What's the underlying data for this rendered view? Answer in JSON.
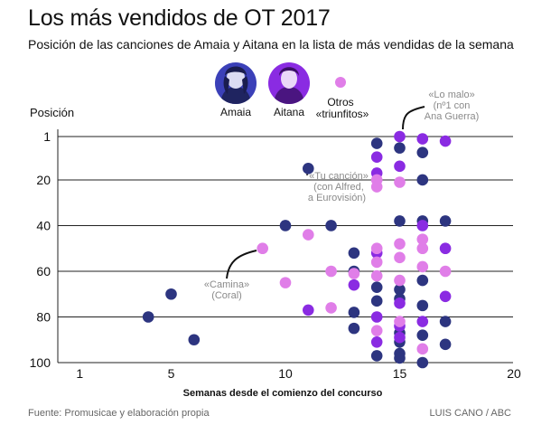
{
  "title": "Los más vendidos de OT 2017",
  "subtitle": "Posición de las canciones de Amaia y Aitana en la lista de más vendidas de la semana",
  "colors": {
    "amaia": "#2d3580",
    "aitana": "#8a2be2",
    "otros": "#e07ee8",
    "amaia_bg": "#3b40b8"
  },
  "legend": [
    {
      "key": "amaia",
      "label": "Amaia",
      "icon": "amaia-portrait"
    },
    {
      "key": "aitana",
      "label": "Aitana",
      "icon": "aitana-portrait"
    },
    {
      "key": "otros",
      "label_line1": "Otros",
      "label_line2": "«triunfitos»",
      "icon": "dot"
    }
  ],
  "annotations": {
    "lo_malo": [
      "«Lo malo»",
      "(nº1 con",
      "Ana Guerra)"
    ],
    "tu_cancion": [
      "«Tu canción»",
      "(con Alfred,",
      "a Eurovisión)"
    ],
    "camina": [
      "«Camina»",
      "(Coral)"
    ]
  },
  "footer": {
    "source": "Fuente: Promusicae y elaboración propia",
    "credit": "LUIS CANO / ABC"
  },
  "chart_data": {
    "type": "scatter",
    "title": "Los más vendidos de OT 2017",
    "ylabel": "Posición",
    "xlabel": "Semanas desde el comienzo del concurso",
    "xlim": [
      0,
      20
    ],
    "ylim": [
      1,
      100
    ],
    "y_inverted": true,
    "x_ticks": [
      1,
      5,
      10,
      15,
      20
    ],
    "y_ticks": [
      1,
      20,
      40,
      60,
      80,
      100
    ],
    "series": [
      {
        "name": "Amaia",
        "points": [
          [
            4,
            80
          ],
          [
            5,
            70
          ],
          [
            6,
            90
          ],
          [
            10,
            40
          ],
          [
            11,
            15
          ],
          [
            12,
            40
          ],
          [
            13,
            52
          ],
          [
            13,
            60
          ],
          [
            13,
            78
          ],
          [
            13,
            85
          ],
          [
            14,
            4
          ],
          [
            14,
            67
          ],
          [
            14,
            73
          ],
          [
            14,
            97
          ],
          [
            15,
            6
          ],
          [
            15,
            38
          ],
          [
            15,
            68
          ],
          [
            15,
            72
          ],
          [
            15,
            87
          ],
          [
            15,
            91
          ],
          [
            15,
            96
          ],
          [
            15,
            98
          ],
          [
            16,
            8
          ],
          [
            16,
            20
          ],
          [
            16,
            38
          ],
          [
            16,
            64
          ],
          [
            16,
            75
          ],
          [
            16,
            88
          ],
          [
            16,
            100
          ],
          [
            17,
            38
          ],
          [
            17,
            82
          ],
          [
            17,
            92
          ]
        ]
      },
      {
        "name": "Aitana",
        "points": [
          [
            11,
            77
          ],
          [
            13,
            66
          ],
          [
            14,
            10
          ],
          [
            14,
            17
          ],
          [
            14,
            52
          ],
          [
            14,
            80
          ],
          [
            14,
            91
          ],
          [
            15,
            1
          ],
          [
            15,
            14
          ],
          [
            15,
            74
          ],
          [
            15,
            84
          ],
          [
            15,
            89
          ],
          [
            16,
            2
          ],
          [
            16,
            40
          ],
          [
            16,
            82
          ],
          [
            17,
            3
          ],
          [
            17,
            50
          ],
          [
            17,
            71
          ]
        ]
      },
      {
        "name": "Otros «triunfitos»",
        "points": [
          [
            9,
            50
          ],
          [
            10,
            65
          ],
          [
            11,
            44
          ],
          [
            12,
            60
          ],
          [
            12,
            76
          ],
          [
            13,
            61
          ],
          [
            14,
            20
          ],
          [
            14,
            23
          ],
          [
            14,
            50
          ],
          [
            14,
            56
          ],
          [
            14,
            62
          ],
          [
            14,
            86
          ],
          [
            15,
            21
          ],
          [
            15,
            48
          ],
          [
            15,
            54
          ],
          [
            15,
            64
          ],
          [
            15,
            82
          ],
          [
            16,
            46
          ],
          [
            16,
            50
          ],
          [
            16,
            58
          ],
          [
            16,
            94
          ],
          [
            17,
            60
          ]
        ]
      }
    ]
  }
}
